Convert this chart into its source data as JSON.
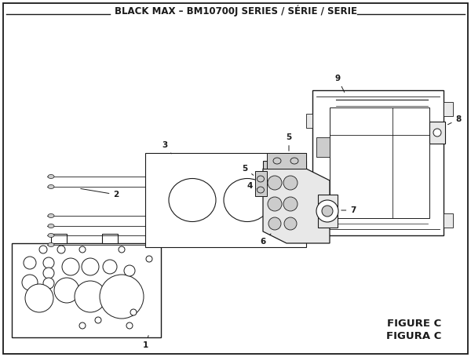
{
  "title": "BLACK MAX – BM10700J SERIES / SÉRIE / SERIE",
  "figure_label_1": "FIGURE C",
  "figure_label_2": "FIGURA C",
  "bg_color": "#ffffff",
  "lc": "#1a1a1a",
  "title_fontsize": 8.5,
  "label_fontsize": 7.5,
  "figure_label_fontsize": 9.5
}
